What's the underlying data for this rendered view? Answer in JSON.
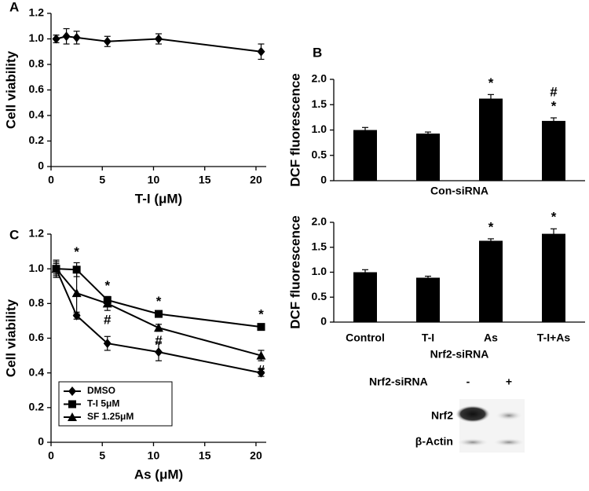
{
  "chart_data": [
    {
      "type": "line",
      "panel": "A",
      "ylabel": "Cell viability",
      "xlabel": "T-I (μM)",
      "x": [
        0.5,
        1.5,
        2.5,
        5.5,
        10.5,
        20.5
      ],
      "values": [
        1.0,
        1.02,
        1.01,
        0.98,
        1.0,
        0.9
      ],
      "errors": [
        0.03,
        0.06,
        0.05,
        0.04,
        0.04,
        0.06
      ],
      "color": "#000000",
      "marker": "diamond",
      "xlim": [
        0,
        21
      ],
      "ylim": [
        0,
        1.2
      ],
      "xticks": [
        0,
        5,
        10,
        15,
        20
      ],
      "yticks": [
        0,
        0.2,
        0.4,
        0.6,
        0.8,
        {
          "value": 1,
          "label": "1.0"
        },
        1.2
      ]
    },
    {
      "type": "bar",
      "panel": "B",
      "ylabel": "DCF fluorescence",
      "xlabel": "Con-siRNA",
      "categories": [
        null,
        null,
        null,
        null
      ],
      "values": [
        1.0,
        0.93,
        1.62,
        1.18
      ],
      "errors": [
        0.05,
        0.03,
        0.08,
        0.06
      ],
      "color": "#000000",
      "ylim": [
        0,
        2
      ],
      "yticks": [
        0,
        0.5,
        {
          "value": 1,
          "label": "1.0"
        },
        1.5,
        {
          "value": 2,
          "label": "2.0"
        }
      ],
      "annotations": [
        {
          "text": "*",
          "index": 2
        },
        {
          "text": "*",
          "index": 3
        },
        {
          "text": "#",
          "index": 3
        }
      ]
    },
    {
      "type": "bar",
      "ylabel": "DCF fluorescence",
      "xlabel": "Nrf2-siRNA",
      "categories": [
        "Control",
        "T-I",
        "As",
        "T-I+As"
      ],
      "values": [
        1.0,
        0.89,
        1.63,
        1.77
      ],
      "errors": [
        0.05,
        0.03,
        0.04,
        0.1
      ],
      "color": "#000000",
      "ylim": [
        0,
        2
      ],
      "yticks": [
        0,
        0.5,
        {
          "value": 1,
          "label": "1.0"
        },
        1.5,
        {
          "value": 2,
          "label": "2.0"
        }
      ],
      "annotations": [
        {
          "text": "*",
          "index": 2
        },
        {
          "text": "*",
          "index": 3
        }
      ]
    },
    {
      "type": "line",
      "panel": "C",
      "ylabel": "Cell viability",
      "xlabel": "As (μM)",
      "x": [
        0.5,
        2.5,
        5.5,
        10.5,
        20.5
      ],
      "series": [
        {
          "name": "DMSO",
          "color": "#000000",
          "marker": "diamond",
          "values": [
            1.0,
            0.73,
            0.57,
            0.52,
            0.4
          ],
          "errors": [
            0.04,
            0.02,
            0.04,
            0.05,
            0.02
          ]
        },
        {
          "name": "T-I 5μM",
          "color": "#000000",
          "marker": "square",
          "values": [
            1.0,
            0.995,
            0.82,
            0.74,
            0.665
          ],
          "errors": [
            0.03,
            0.04,
            0.02,
            0.01,
            0.01
          ]
        },
        {
          "name": "SF 1.25μM",
          "color": "#000000",
          "marker": "triangle",
          "values": [
            1.0,
            0.86,
            0.8,
            0.66,
            0.5
          ],
          "errors": [
            0.05,
            0.12,
            0.04,
            0.02,
            0.03
          ]
        }
      ],
      "xlim": [
        0,
        21
      ],
      "ylim": [
        0,
        1.2
      ],
      "xticks": [
        0,
        5,
        10,
        15,
        20
      ],
      "yticks": [
        0,
        0.2,
        0.4,
        0.6,
        0.8,
        {
          "value": 1,
          "label": "1.0"
        },
        1.2
      ],
      "legend": "bottom-left",
      "annotations": [
        {
          "text": "*",
          "index": 1,
          "series": 1
        },
        {
          "text": "*",
          "index": 2,
          "series": 1
        },
        {
          "text": "*",
          "index": 3,
          "series": 1
        },
        {
          "text": "*",
          "index": 4,
          "series": 1
        },
        {
          "text": "#",
          "index": 2,
          "series": 2
        },
        {
          "text": "#",
          "index": 3,
          "series": 2
        },
        {
          "text": "#",
          "index": 4,
          "series": 2
        }
      ]
    }
  ],
  "blot": {
    "header": "Nrf2-siRNA",
    "lanes": [
      "-",
      "+"
    ],
    "rows": [
      "Nrf2",
      "β-Actin"
    ]
  }
}
